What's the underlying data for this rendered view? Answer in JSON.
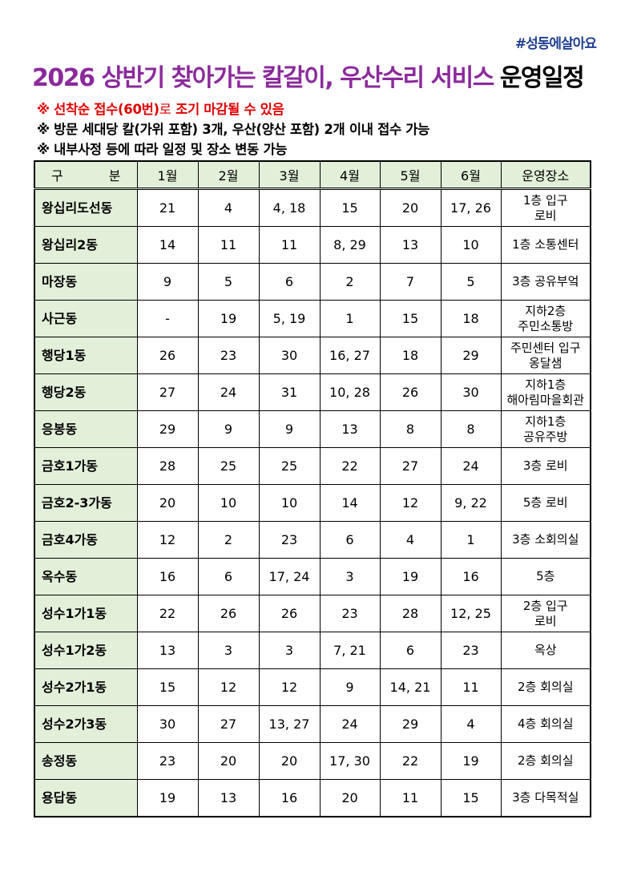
{
  "hashtag": "#성동에살아요",
  "title": {
    "main": "2026 상반기 찾아가는 칼갈이, 우산수리 서비스",
    "suffix": "운영일정"
  },
  "notes": {
    "note1_a": "※ 선착순 접수(60번)",
    "note1_b": "로",
    "note1_c": " 조기 마감될 수 있음",
    "note2": "※ 방문 세대당 칼(가위 포함) 3개, 우산(양산 포함) 2개 이내 접수 가능",
    "note3": "※ 내부사정 등에 따라 일정 및 장소 변동 가능"
  },
  "colors": {
    "title_purple": "#8b2a9b",
    "note_red": "#e00000",
    "header_green": "#e2efd9"
  },
  "table": {
    "headers": [
      "구 분",
      "1월",
      "2월",
      "3월",
      "4월",
      "5월",
      "6월",
      "운영장소"
    ],
    "rows": [
      [
        "왕십리도선동",
        "21",
        "4",
        "4, 18",
        "15",
        "20",
        "17, 26",
        "1층 입구\n로비"
      ],
      [
        "왕십리2동",
        "14",
        "11",
        "11",
        "8, 29",
        "13",
        "10",
        "1층 소통센터"
      ],
      [
        "마장동",
        "9",
        "5",
        "6",
        "2",
        "7",
        "5",
        "3층 공유부엌"
      ],
      [
        "사근동",
        "-",
        "19",
        "5, 19",
        "1",
        "15",
        "18",
        "지하2층\n주민소통방"
      ],
      [
        "행당1동",
        "26",
        "23",
        "30",
        "16, 27",
        "18",
        "29",
        "주민센터 입구\n옹달샘"
      ],
      [
        "행당2동",
        "27",
        "24",
        "31",
        "10, 28",
        "26",
        "30",
        "지하1층\n해아림마을회관"
      ],
      [
        "응봉동",
        "29",
        "9",
        "9",
        "13",
        "8",
        "8",
        "지하1층\n공유주방"
      ],
      [
        "금호1가동",
        "28",
        "25",
        "25",
        "22",
        "27",
        "24",
        "3층 로비"
      ],
      [
        "금호2-3가동",
        "20",
        "10",
        "10",
        "14",
        "12",
        "9, 22",
        "5층 로비"
      ],
      [
        "금호4가동",
        "12",
        "2",
        "23",
        "6",
        "4",
        "1",
        "3층 소회의실"
      ],
      [
        "옥수동",
        "16",
        "6",
        "17, 24",
        "3",
        "19",
        "16",
        "5층"
      ],
      [
        "성수1가1동",
        "22",
        "26",
        "26",
        "23",
        "28",
        "12, 25",
        "2층 입구\n로비"
      ],
      [
        "성수1가2동",
        "13",
        "3",
        "3",
        "7, 21",
        "6",
        "23",
        "옥상"
      ],
      [
        "성수2가1동",
        "15",
        "12",
        "12",
        "9",
        "14, 21",
        "11",
        "2층 회의실"
      ],
      [
        "성수2가3동",
        "30",
        "27",
        "13, 27",
        "24",
        "29",
        "4",
        "4층 회의실"
      ],
      [
        "송정동",
        "23",
        "20",
        "20",
        "17, 30",
        "22",
        "19",
        "2층 회의실"
      ],
      [
        "용답동",
        "19",
        "13",
        "16",
        "20",
        "11",
        "15",
        "3층 다목적실"
      ]
    ]
  }
}
